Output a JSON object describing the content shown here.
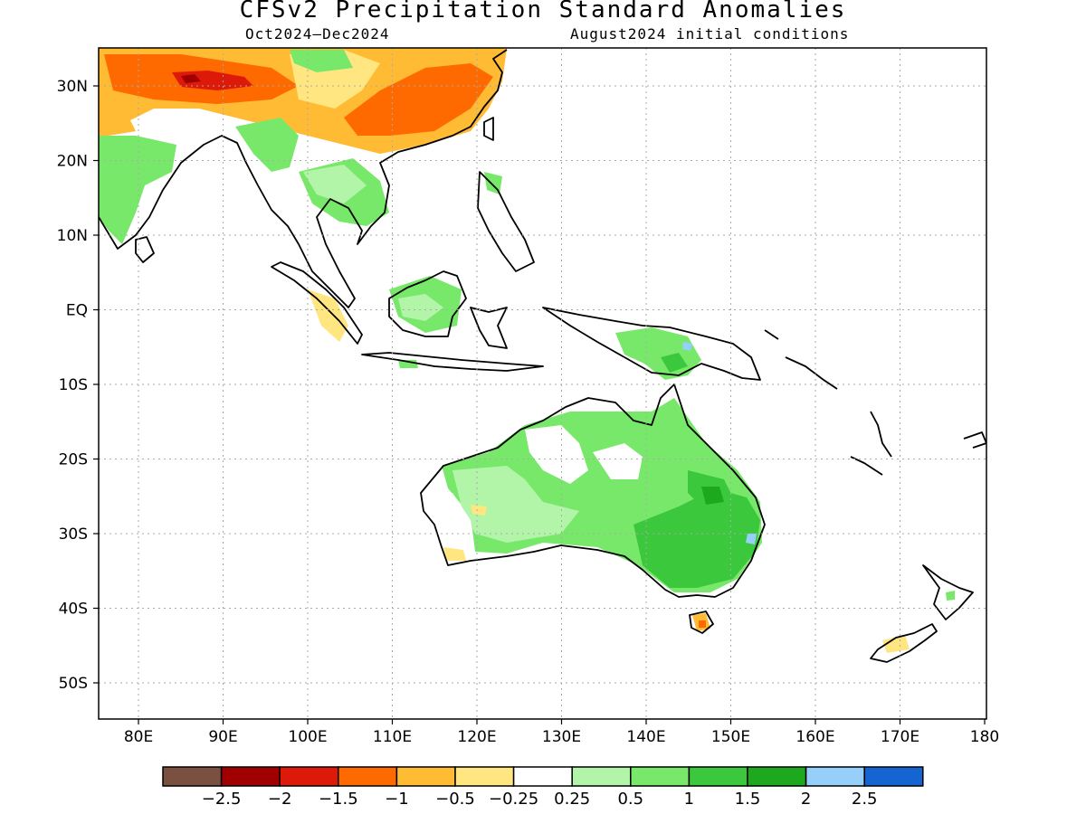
{
  "title": "CFSv2 Precipitation Standard Anomalies",
  "subtitle_period": "Oct2024–Dec2024",
  "subtitle_ic": "August2024 initial conditions",
  "map": {
    "lon_ticks": [
      "80E",
      "90E",
      "100E",
      "110E",
      "120E",
      "130E",
      "140E",
      "150E",
      "160E",
      "170E",
      "180"
    ],
    "lat_ticks": [
      "30N",
      "20N",
      "10N",
      "EQ",
      "10S",
      "20S",
      "30S",
      "40S",
      "50S"
    ]
  },
  "colorbar": {
    "colors": [
      "#7a5040",
      "#a00000",
      "#dd1a0a",
      "#ff6a00",
      "#ffbb33",
      "#ffe680",
      "#ffffff",
      "#b2f5a8",
      "#78e86a",
      "#3cc83c",
      "#1ea81e",
      "#96d0fa",
      "#1464d2"
    ],
    "labels": [
      "−2.5",
      "−2",
      "−1.5",
      "−1",
      "−0.5",
      "−0.25",
      "0.25",
      "0.5",
      "1",
      "1.5",
      "2",
      "2.5"
    ]
  }
}
